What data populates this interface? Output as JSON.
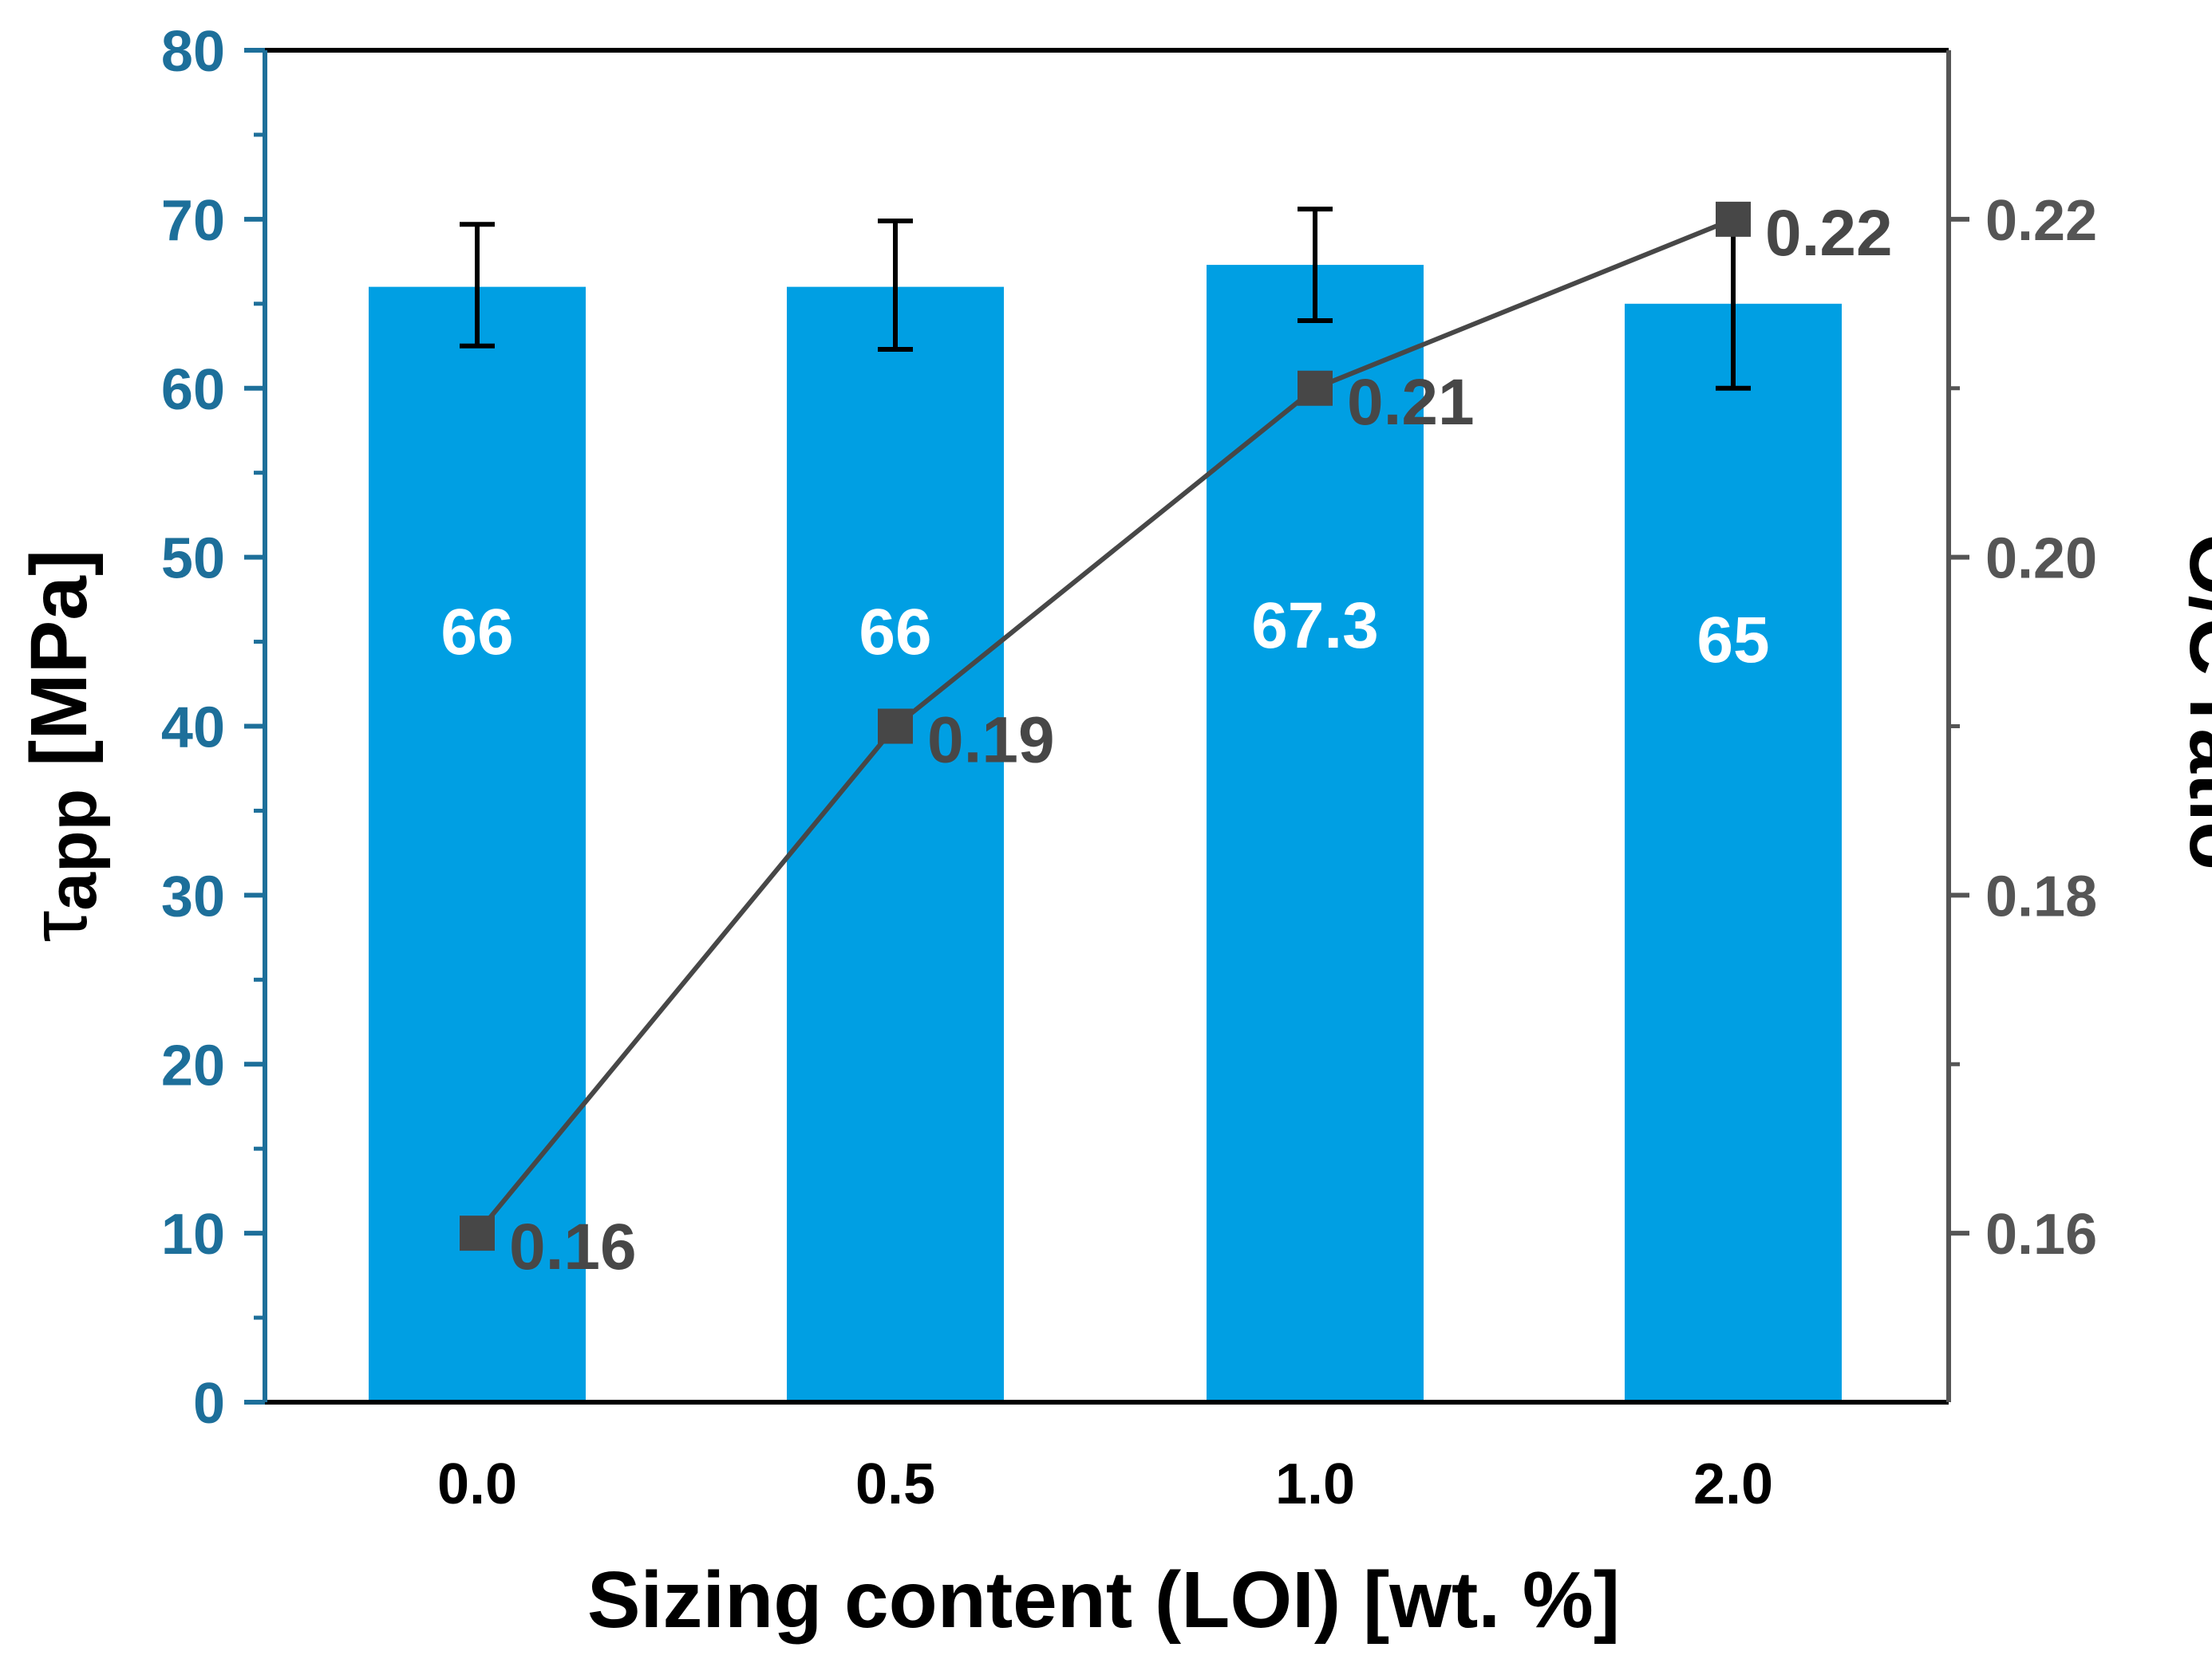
{
  "chart_data": {
    "type": "bar",
    "categories": [
      "0.0",
      "0.5",
      "1.0",
      "2.0"
    ],
    "xlabel": "Sizing content (LOI) [wt. %]",
    "ylabel": {
      "main": "τ",
      "sub": "app",
      "unit": " [MPa]"
    },
    "ylim": [
      0,
      80
    ],
    "yticks": [
      0,
      10,
      20,
      30,
      40,
      50,
      60,
      70,
      80
    ],
    "ytick_labels": [
      "0",
      "10",
      "20",
      "30",
      "40",
      "50",
      "60",
      "70",
      "80"
    ],
    "series": [
      {
        "name": "τapp",
        "axis": "left",
        "kind": "bar",
        "values": [
          66,
          66,
          67.3,
          65
        ],
        "labels": [
          "66",
          "66",
          "67.3",
          "65"
        ],
        "error_low": [
          62.5,
          62.3,
          64,
          60
        ],
        "error_high": [
          69.7,
          69.9,
          70.6,
          69.9
        ],
        "color": "#009fe3"
      },
      {
        "name": "O/C ratio",
        "axis": "right",
        "kind": "line",
        "marker": "square",
        "values": [
          0.16,
          0.19,
          0.21,
          0.22
        ],
        "labels": [
          "0.16",
          "0.19",
          "0.21",
          "0.22"
        ],
        "color": "#474747"
      }
    ],
    "y2label": "O/C ratio",
    "y2lim": [
      0.15,
      0.23
    ],
    "y2ticks": [
      0.16,
      0.18,
      0.2,
      0.22
    ],
    "y2tick_labels": [
      "0.16",
      "0.18",
      "0.20",
      "0.22"
    ],
    "colors": {
      "bar": "#009fe3",
      "left_axis": "#1d6f9a",
      "right_axis": "#555555",
      "frame": "#000000",
      "line": "#474747",
      "bar_label": "#ffffff",
      "point_label": "#474747",
      "error_bar": "#000000"
    }
  }
}
